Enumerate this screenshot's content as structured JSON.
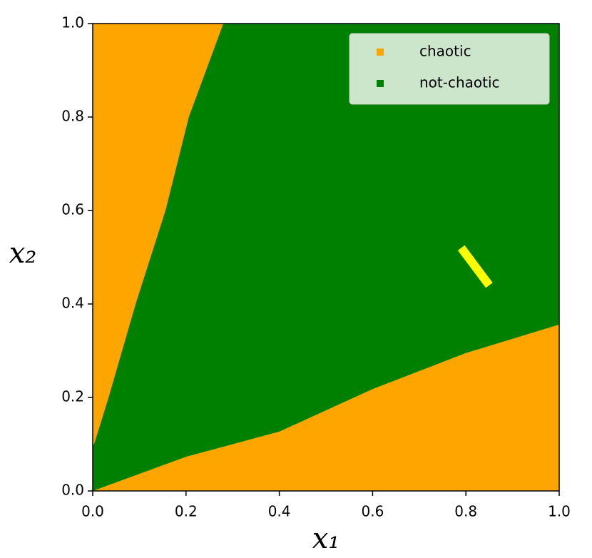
{
  "chart_data": {
    "type": "region",
    "xlabel": "x₁",
    "ylabel": "x₂",
    "xlim": [
      0,
      1
    ],
    "ylim": [
      0,
      1
    ],
    "xticks": [
      {
        "value": 0,
        "label": "0.0"
      },
      0.2,
      0.4,
      0.6,
      0.8,
      {
        "value": 1,
        "label": "1.0"
      }
    ],
    "yticks": [
      {
        "value": 0,
        "label": "0.0"
      },
      0.2,
      0.4,
      0.6,
      0.8,
      {
        "value": 1,
        "label": "1.0"
      }
    ],
    "legend": "upper right",
    "series": [
      {
        "name": "not-chaotic",
        "color": "#008000",
        "polygons": [
          [
            [
              0,
              0
            ],
            [
              1,
              0
            ],
            [
              1,
              1
            ],
            [
              0,
              1
            ]
          ]
        ]
      },
      {
        "name": "chaotic",
        "color": "#ffa500",
        "polygons": [
          [
            [
              0,
              1
            ],
            [
              0.28,
              1
            ],
            [
              0.206,
              0.8
            ],
            [
              0.156,
              0.6
            ],
            [
              0.092,
              0.4
            ],
            [
              0.034,
              0.2
            ],
            [
              0.003,
              0.1
            ],
            [
              0,
              0.1
            ]
          ],
          [
            [
              0,
              0
            ],
            [
              0.2,
              0.073
            ],
            [
              0.4,
              0.127
            ],
            [
              0.6,
              0.218
            ],
            [
              0.8,
              0.295
            ],
            [
              1,
              0.356
            ],
            [
              1,
              0
            ]
          ]
        ]
      }
    ],
    "lines": [
      {
        "color": "#ffff00",
        "x": [
          0.79,
          0.85
        ],
        "y": [
          0.52,
          0.44
        ]
      }
    ]
  }
}
